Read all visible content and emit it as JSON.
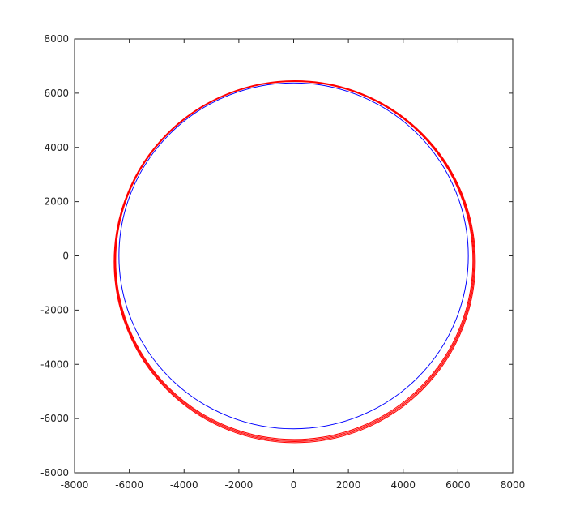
{
  "chart_data": {
    "type": "line",
    "title": "",
    "xlabel": "",
    "ylabel": "",
    "xlim": [
      -8000,
      8000
    ],
    "ylim": [
      -8000,
      8000
    ],
    "xticks": [
      -8000,
      -6000,
      -4000,
      -2000,
      0,
      2000,
      4000,
      6000,
      8000
    ],
    "yticks": [
      -8000,
      -6000,
      -4000,
      -2000,
      0,
      2000,
      4000,
      6000,
      8000
    ],
    "xtick_labels": [
      "-8000",
      "-6000",
      "-4000",
      "-2000",
      "0",
      "2000",
      "4000",
      "6000",
      "8000"
    ],
    "ytick_labels": [
      "-8000",
      "-6000",
      "-4000",
      "-2000",
      "0",
      "2000",
      "4000",
      "6000",
      "8000"
    ],
    "grid": false,
    "legend": "none",
    "series": [
      {
        "color": "#0000ff",
        "shape": "circle",
        "center": [
          0,
          0
        ],
        "radius": 6378
      },
      {
        "color": "#ff0000",
        "shape": "ellipse",
        "center": [
          25,
          -170
        ],
        "rx": 6520,
        "ry": 6600
      },
      {
        "color": "#ff0000",
        "shape": "ellipse",
        "center": [
          30,
          -185
        ],
        "rx": 6545,
        "ry": 6625
      },
      {
        "color": "#ff0000",
        "shape": "ellipse",
        "center": [
          35,
          -200
        ],
        "rx": 6570,
        "ry": 6650
      },
      {
        "color": "#ff0000",
        "shape": "ellipse",
        "center": [
          40,
          -215
        ],
        "rx": 6595,
        "ry": 6675
      }
    ]
  }
}
